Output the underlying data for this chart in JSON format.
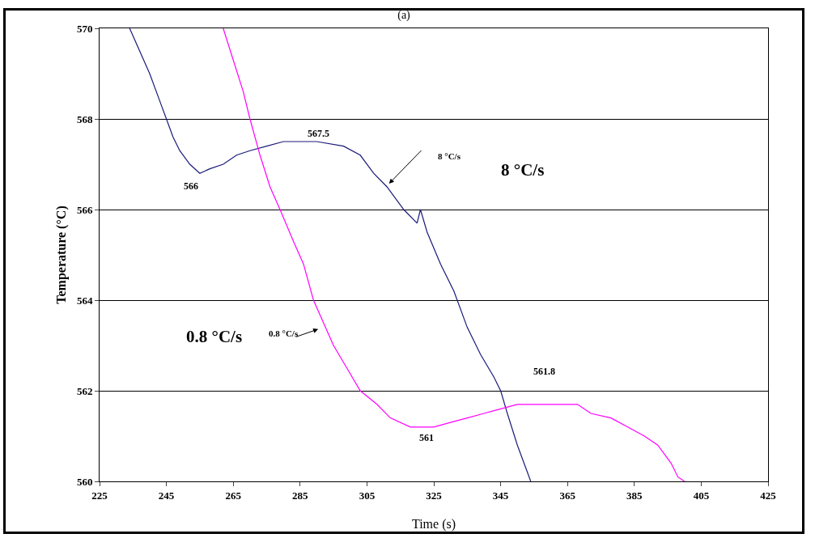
{
  "chart_data": {
    "type": "line",
    "title": "(a)",
    "xlabel": "Time (s)",
    "ylabel": "Temperature (°C)",
    "xlim": [
      225,
      425
    ],
    "xticks": [
      225,
      245,
      265,
      285,
      305,
      325,
      345,
      365,
      385,
      405,
      425
    ],
    "ylim": [
      560,
      570
    ],
    "yticks": [
      560,
      562,
      564,
      566,
      568,
      570
    ],
    "grid": "y",
    "marker": "none",
    "line_style": "solid",
    "series": [
      {
        "color": "#1a1a7a",
        "x": [
          234,
          237,
          240,
          243,
          245,
          247,
          249,
          252,
          255,
          258,
          262,
          266,
          270,
          275,
          280,
          290,
          298,
          303,
          307,
          311,
          314,
          316,
          320,
          321,
          323,
          327,
          331,
          335,
          339,
          343,
          345,
          347,
          350,
          353,
          354
        ],
        "values": [
          570,
          569.5,
          569,
          568.4,
          568,
          567.6,
          567.3,
          567,
          566.8,
          566.9,
          567,
          567.2,
          567.3,
          567.4,
          567.5,
          567.5,
          567.4,
          567.2,
          566.8,
          566.5,
          566.2,
          566,
          565.7,
          566,
          565.5,
          564.8,
          564.2,
          563.4,
          562.8,
          562.3,
          562,
          561.5,
          560.8,
          560.2,
          560
        ]
      },
      {
        "color": "#ff00ff",
        "x": [
          262,
          265,
          268,
          270,
          273,
          276,
          279,
          283,
          286,
          289,
          292,
          295,
          299,
          303,
          308,
          312,
          318,
          325,
          330,
          335,
          340,
          345,
          350,
          360,
          368,
          372,
          378,
          383,
          388,
          392,
          396,
          398,
          400
        ],
        "values": [
          570,
          569.3,
          568.6,
          568,
          567.2,
          566.5,
          566,
          565.3,
          564.8,
          564,
          563.5,
          563,
          562.5,
          562,
          561.7,
          561.4,
          561.2,
          561.2,
          561.3,
          561.4,
          561.5,
          561.6,
          561.7,
          561.7,
          561.7,
          561.5,
          561.4,
          561.2,
          561,
          560.8,
          560.4,
          560.1,
          560
        ]
      }
    ],
    "annotations": [
      "567.5",
      "566",
      "561",
      "561.8",
      "8 °C/s",
      "8 °C/s",
      "0.8 °C/s",
      "0.8 °C/s"
    ]
  }
}
